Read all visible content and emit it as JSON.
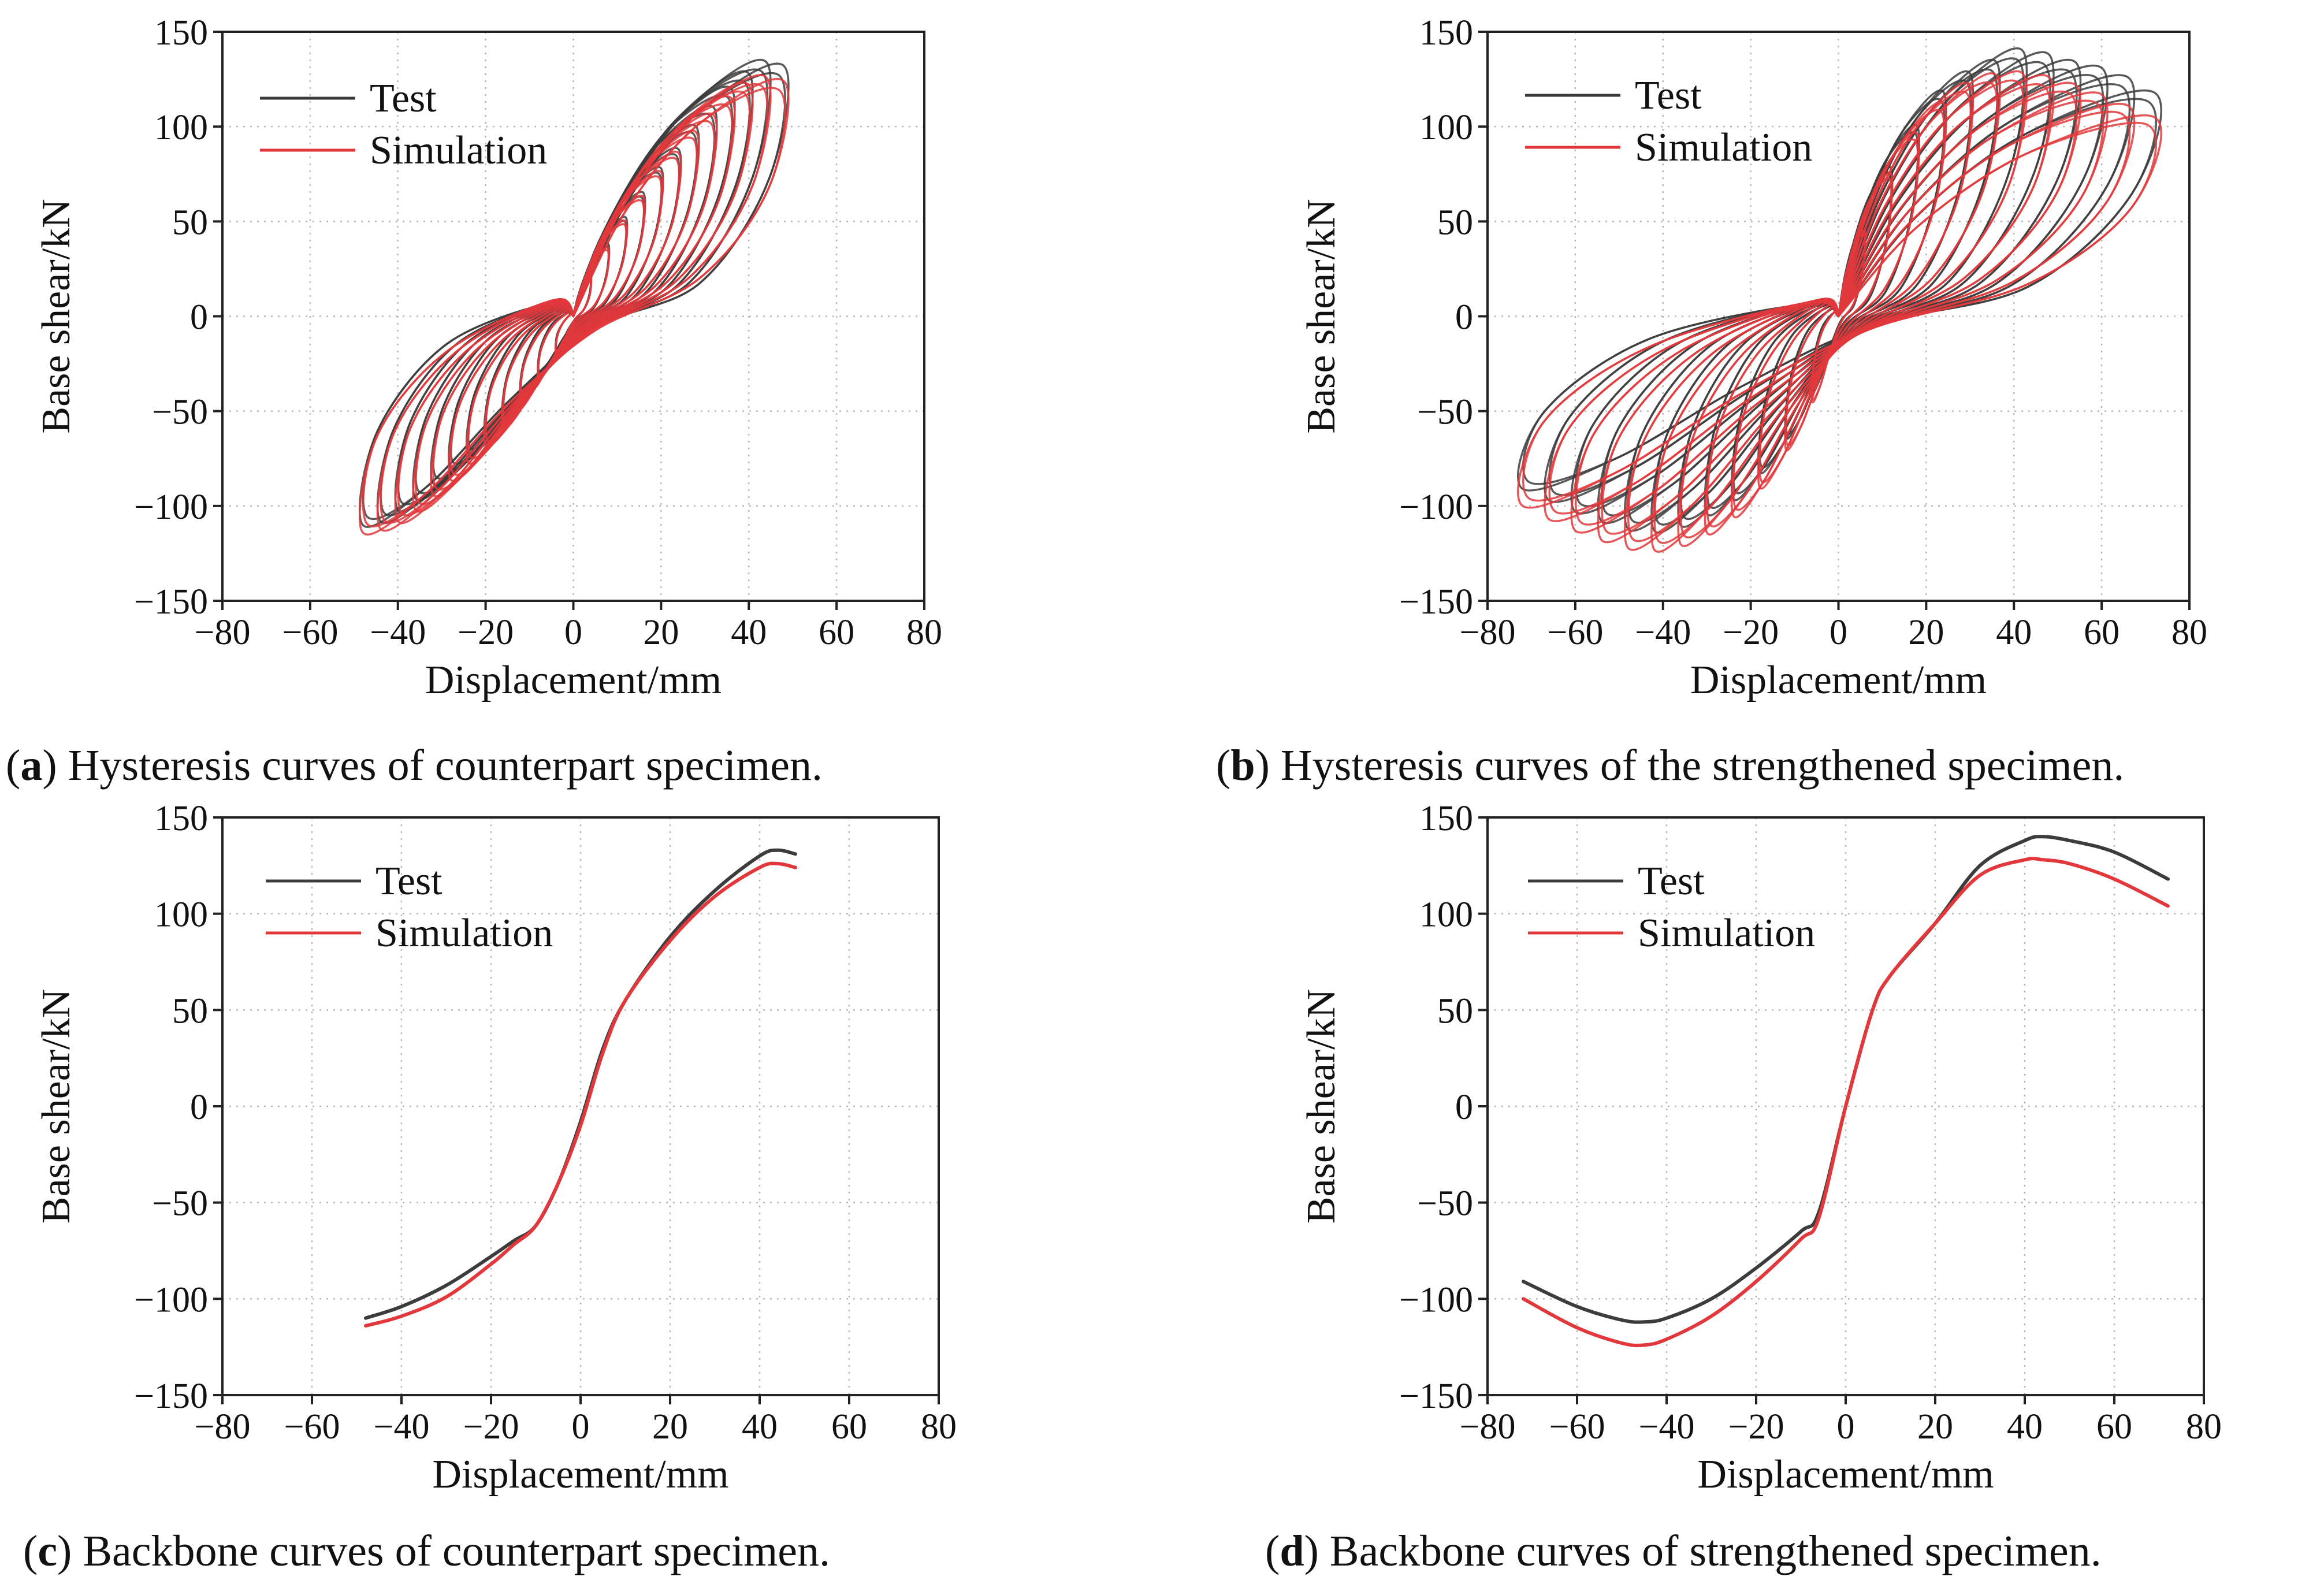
{
  "colors": {
    "test": "#3c3c3c",
    "simulation": "#e2383c",
    "grid": "#b8b8b8"
  },
  "chart_data": [
    {
      "id": "a",
      "type": "line",
      "subtype": "hysteresis",
      "caption_letter": "a",
      "caption": "Hysteresis curves of counterpart specimen.",
      "xlabel": "Displacement/mm",
      "ylabel": "Base shear/kN",
      "xlim": [
        -80,
        80
      ],
      "ylim": [
        -150,
        150
      ],
      "xticks": [
        -80,
        -60,
        -40,
        -20,
        0,
        20,
        40,
        60,
        80
      ],
      "yticks": [
        150,
        100,
        50,
        0,
        -50,
        -100,
        -150
      ],
      "legend": [
        "Test",
        "Simulation"
      ],
      "legend_position": "top-left",
      "series": [
        {
          "name": "Test",
          "peaks_x": [
            4,
            8,
            12,
            16,
            20,
            24,
            28,
            32,
            36,
            40,
            44,
            48
          ],
          "peaks_pos": [
            22,
            38,
            52,
            65,
            78,
            88,
            100,
            110,
            120,
            128,
            134,
            132
          ],
          "peaks_neg": [
            -18,
            -30,
            -42,
            -54,
            -64,
            -72,
            -80,
            -88,
            -96,
            -102,
            -108,
            -110
          ]
        },
        {
          "name": "Simulation",
          "peaks_x": [
            4,
            8,
            12,
            16,
            20,
            24,
            28,
            32,
            36,
            40,
            44,
            48
          ],
          "peaks_pos": [
            20,
            36,
            50,
            63,
            76,
            86,
            97,
            106,
            115,
            122,
            126,
            124
          ],
          "peaks_neg": [
            -20,
            -33,
            -45,
            -57,
            -68,
            -77,
            -86,
            -94,
            -102,
            -108,
            -112,
            -114
          ]
        }
      ]
    },
    {
      "id": "b",
      "type": "line",
      "subtype": "hysteresis",
      "caption_letter": "b",
      "caption": "Hysteresis curves of the strengthened specimen.",
      "xlabel": "Displacement/mm",
      "ylabel": "Base shear/kN",
      "xlim": [
        -80,
        80
      ],
      "ylim": [
        -150,
        150
      ],
      "xticks": [
        -80,
        -60,
        -40,
        -20,
        0,
        20,
        40,
        60,
        80
      ],
      "yticks": [
        150,
        100,
        50,
        0,
        -50,
        -100,
        -150
      ],
      "legend": [
        "Test",
        "Simulation"
      ],
      "legend_position": "top-left",
      "series": [
        {
          "name": "Test",
          "peaks_x": [
            6,
            12,
            18,
            24,
            30,
            36,
            42,
            48,
            54,
            60,
            66,
            72
          ],
          "peaks_pos": [
            48,
            78,
            100,
            118,
            128,
            134,
            140,
            138,
            134,
            131,
            126,
            118
          ],
          "peaks_neg": [
            -40,
            -64,
            -82,
            -96,
            -104,
            -110,
            -113,
            -112,
            -108,
            -103,
            -97,
            -91
          ]
        },
        {
          "name": "Simulation",
          "peaks_x": [
            6,
            12,
            18,
            24,
            30,
            36,
            42,
            48,
            54,
            60,
            66,
            72
          ],
          "peaks_pos": [
            45,
            75,
            96,
            112,
            122,
            127,
            128,
            126,
            122,
            117,
            111,
            105
          ],
          "peaks_neg": [
            -45,
            -70,
            -90,
            -105,
            -114,
            -120,
            -123,
            -122,
            -118,
            -113,
            -107,
            -100
          ]
        }
      ]
    },
    {
      "id": "c",
      "type": "line",
      "subtype": "backbone",
      "caption_letter": "c",
      "caption": "Backbone curves of counterpart specimen.",
      "xlabel": "Displacement/mm",
      "ylabel": "Base shear/kN",
      "xlim": [
        -80,
        80
      ],
      "ylim": [
        -150,
        150
      ],
      "xticks": [
        -80,
        -60,
        -40,
        -20,
        0,
        20,
        40,
        60,
        80
      ],
      "yticks": [
        150,
        100,
        50,
        0,
        -50,
        -100,
        -150
      ],
      "legend": [
        "Test",
        "Simulation"
      ],
      "legend_position": "top-left",
      "series": [
        {
          "name": "Test",
          "x": [
            -48,
            -40,
            -30,
            -20,
            -15,
            -10,
            -5,
            0,
            5,
            10,
            20,
            30,
            40,
            44,
            48
          ],
          "y": [
            -110,
            -104,
            -93,
            -78,
            -70,
            -62,
            -40,
            -8,
            30,
            55,
            88,
            112,
            130,
            133,
            131
          ]
        },
        {
          "name": "Simulation",
          "x": [
            -48,
            -40,
            -30,
            -20,
            -15,
            -10,
            -5,
            0,
            5,
            10,
            20,
            30,
            40,
            44,
            48
          ],
          "y": [
            -114,
            -109,
            -99,
            -82,
            -72,
            -62,
            -40,
            -10,
            28,
            55,
            86,
            109,
            124,
            126,
            124
          ]
        }
      ]
    },
    {
      "id": "d",
      "type": "line",
      "subtype": "backbone",
      "caption_letter": "d",
      "caption": "Backbone curves of strengthened specimen.",
      "xlabel": "Displacement/mm",
      "ylabel": "Base shear/kN",
      "xlim": [
        -80,
        80
      ],
      "ylim": [
        -150,
        150
      ],
      "xticks": [
        -80,
        -60,
        -40,
        -20,
        0,
        20,
        40,
        60,
        80
      ],
      "yticks": [
        150,
        100,
        50,
        0,
        -50,
        -100,
        -150
      ],
      "legend": [
        "Test",
        "Simulation"
      ],
      "legend_position": "top-left",
      "series": [
        {
          "name": "Test",
          "x": [
            -72,
            -60,
            -50,
            -45,
            -40,
            -30,
            -20,
            -10,
            -6,
            0,
            6,
            10,
            20,
            30,
            40,
            44,
            50,
            60,
            72
          ],
          "y": [
            -91,
            -104,
            -111,
            -112,
            -110,
            -100,
            -84,
            -65,
            -55,
            0,
            50,
            68,
            95,
            125,
            138,
            140,
            138,
            132,
            118
          ]
        },
        {
          "name": "Simulation",
          "x": [
            -72,
            -60,
            -50,
            -45,
            -40,
            -30,
            -20,
            -10,
            -6,
            0,
            6,
            10,
            20,
            30,
            40,
            44,
            50,
            60,
            72
          ],
          "y": [
            -100,
            -115,
            -123,
            -124,
            -121,
            -109,
            -91,
            -69,
            -58,
            0,
            50,
            68,
            95,
            120,
            128,
            128,
            126,
            118,
            104
          ]
        }
      ]
    }
  ]
}
